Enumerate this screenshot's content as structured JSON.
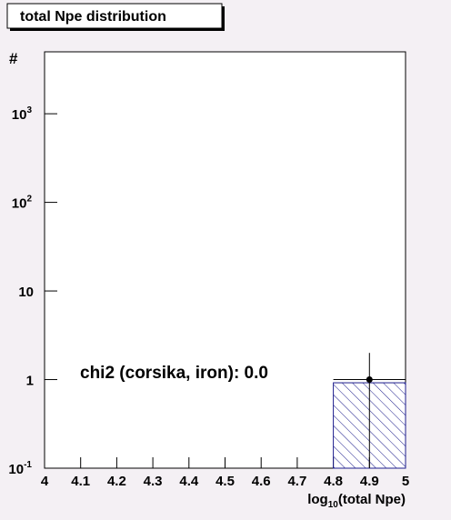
{
  "chart_data": {
    "type": "histogram",
    "title": "total Npe distribution",
    "xlabel": {
      "text": "log",
      "subscript": "10",
      "suffix": "(total Npe)"
    },
    "ylabel": "#",
    "annotation": "chi2 (corsika, iron): 0.0",
    "xlim": [
      4,
      5
    ],
    "xticks": [
      4,
      4.1,
      4.2,
      4.3,
      4.4,
      4.5,
      4.6,
      4.7,
      4.8,
      4.9,
      5
    ],
    "ylim": [
      0.1,
      5000
    ],
    "log_y": true,
    "yticks": [
      {
        "value": 0.1,
        "label": "10",
        "exponent": "-1"
      },
      1,
      10,
      {
        "value": 100,
        "label": "10",
        "exponent": "2"
      },
      {
        "value": 1000,
        "label": "10",
        "exponent": "3"
      }
    ],
    "bins": [
      4.8,
      5.0
    ],
    "values": [
      0.92
    ],
    "color": "#1c1c8c",
    "points": {
      "x": [
        4.9
      ],
      "values": [
        1
      ],
      "errors": [
        1
      ],
      "xerrors": [
        0.1
      ],
      "color": "#000000"
    }
  }
}
